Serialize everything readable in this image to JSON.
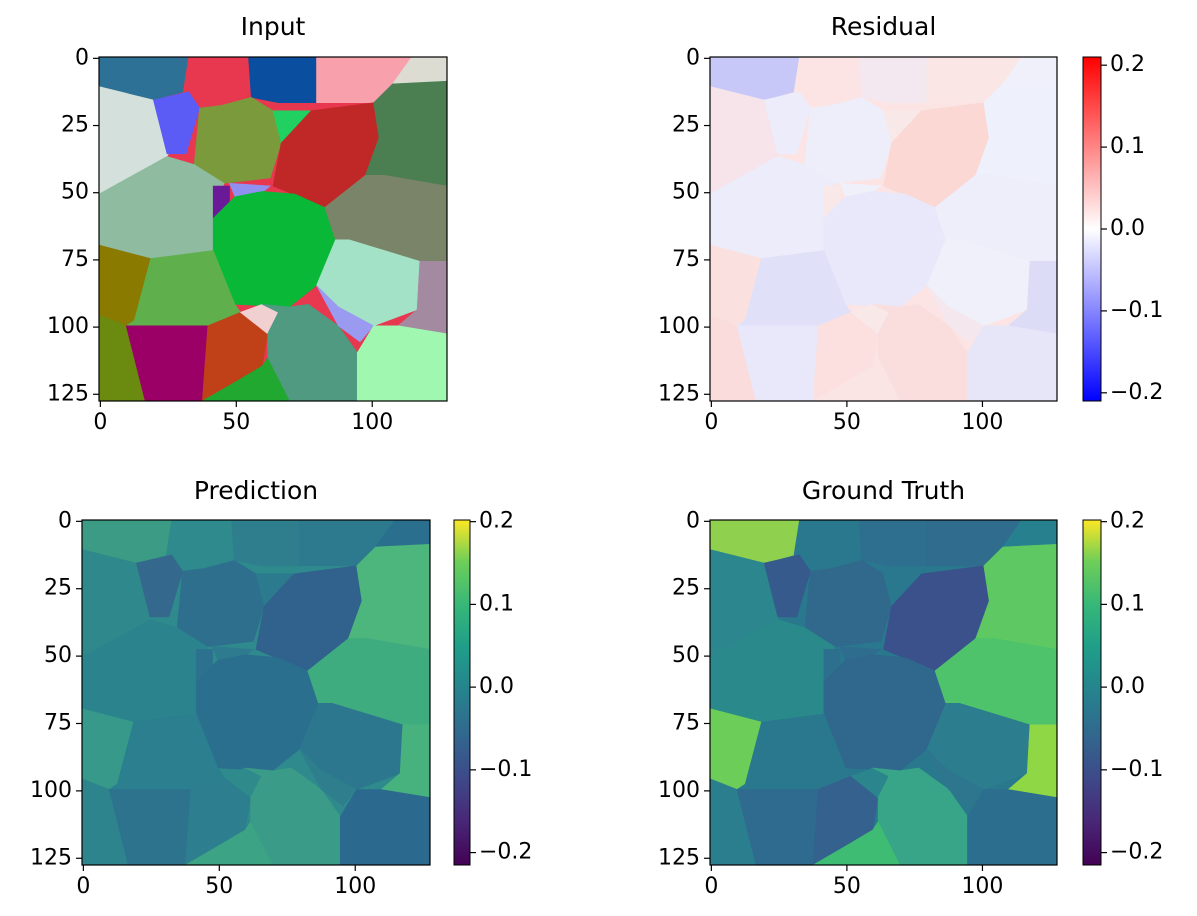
{
  "chart_data": [
    {
      "type": "image",
      "title": "Input",
      "xlim": [
        -0.5,
        127.5
      ],
      "ylim": [
        127.5,
        -0.5
      ],
      "xticks": [
        0,
        50,
        100
      ],
      "yticks": [
        0,
        25,
        50,
        75,
        100,
        125
      ]
    },
    {
      "type": "image",
      "title": "Residual",
      "xlim": [
        -0.5,
        127.5
      ],
      "ylim": [
        127.5,
        -0.5
      ],
      "xticks": [
        0,
        50,
        100
      ],
      "yticks": [
        0,
        25,
        50,
        75,
        100,
        125
      ],
      "colormap": "bwr",
      "clim": [
        -0.21,
        0.21
      ],
      "cticks": [
        {
          "value": -0.2,
          "label": "−0.2"
        },
        {
          "value": -0.1,
          "label": "−0.1"
        },
        {
          "value": 0,
          "label": "0.0"
        },
        0.1,
        0.2
      ]
    },
    {
      "type": "image",
      "title": "Prediction",
      "xlim": [
        -0.5,
        127.5
      ],
      "ylim": [
        127.5,
        -0.5
      ],
      "xticks": [
        0,
        50,
        100
      ],
      "yticks": [
        0,
        25,
        50,
        75,
        100,
        125
      ],
      "colormap": "viridis",
      "clim": [
        -0.215,
        0.202
      ],
      "cticks": [
        {
          "value": -0.2,
          "label": "−0.2"
        },
        {
          "value": -0.1,
          "label": "−0.1"
        },
        {
          "value": 0,
          "label": "0.0"
        },
        0.1,
        0.2
      ]
    },
    {
      "type": "image",
      "title": "Ground Truth",
      "xlim": [
        -0.5,
        127.5
      ],
      "ylim": [
        127.5,
        -0.5
      ],
      "xticks": [
        0,
        50,
        100
      ],
      "yticks": [
        0,
        25,
        50,
        75,
        100,
        125
      ],
      "colormap": "viridis",
      "clim": [
        -0.215,
        0.202
      ],
      "cticks": [
        {
          "value": -0.2,
          "label": "−0.2"
        },
        {
          "value": -0.1,
          "label": "−0.1"
        },
        {
          "value": 0,
          "label": "0.0"
        },
        0.1,
        0.2
      ]
    }
  ]
}
